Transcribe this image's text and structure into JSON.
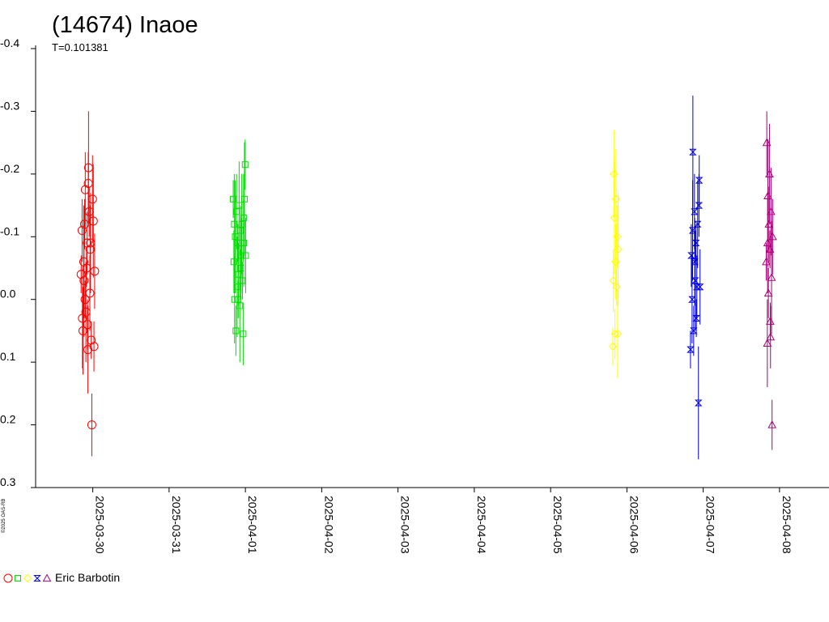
{
  "chart_data": {
    "type": "scatter",
    "title": "(14674) Inaoe",
    "subtitle": "T=0.101381",
    "xlabel": "",
    "ylabel": "",
    "x_axis": {
      "type": "date",
      "ticks": [
        "2025-03-30",
        "2025-03-31",
        "2025-04-01",
        "2025-04-02",
        "2025-04-03",
        "2025-04-04",
        "2025-04-05",
        "2025-04-06",
        "2025-04-07",
        "2025-04-08"
      ],
      "range": [
        "2025-03-29T05:00:00",
        "2025-04-08T12:00:00"
      ]
    },
    "y_axis": {
      "inverted": true,
      "range": [
        -0.4,
        0.3
      ],
      "ticks": [
        -0.4,
        -0.3,
        -0.2,
        -0.1,
        0.0,
        0.1,
        0.2,
        0.3
      ],
      "tick_labels": [
        "-0.4",
        "-0.3",
        "-0.2",
        "-0.1",
        "0.0",
        "0.1",
        "0.2",
        "0.3"
      ]
    },
    "grid": false,
    "legend": {
      "placement": "bottom-left",
      "observer": "Eric Barbotin"
    },
    "watermark": "©2025 OAS-RB",
    "series": [
      {
        "marker": "circle",
        "color": "#ff0000",
        "points": [
          {
            "x": "2025-03-29T20:20",
            "y": -0.04
          },
          {
            "x": "2025-03-29T20:38",
            "y": -0.11
          },
          {
            "x": "2025-03-29T20:55",
            "y": 0.05
          },
          {
            "x": "2025-03-29T21:10",
            "y": -0.06
          },
          {
            "x": "2025-03-29T21:25",
            "y": -0.12
          },
          {
            "x": "2025-03-29T21:38",
            "y": -0.175
          },
          {
            "x": "2025-03-29T21:50",
            "y": 0.02
          },
          {
            "x": "2025-03-29T22:02",
            "y": -0.05
          },
          {
            "x": "2025-03-29T22:15",
            "y": -0.09
          },
          {
            "x": "2025-03-29T22:28",
            "y": 0.08
          },
          {
            "x": "2025-03-29T22:40",
            "y": -0.21
          },
          {
            "x": "2025-03-29T22:52",
            "y": -0.14
          },
          {
            "x": "2025-03-29T23:05",
            "y": -0.01
          },
          {
            "x": "2025-03-29T23:18",
            "y": -0.09
          },
          {
            "x": "2025-03-29T23:30",
            "y": 0.065
          },
          {
            "x": "2025-03-29T23:42",
            "y": 0.2
          },
          {
            "x": "2025-03-29T23:55",
            "y": -0.16
          },
          {
            "x": "2025-03-30T00:10",
            "y": -0.125
          },
          {
            "x": "2025-03-30T00:22",
            "y": 0.075
          },
          {
            "x": "2025-03-30T00:35",
            "y": -0.045
          },
          {
            "x": "2025-03-29T20:45",
            "y": 0.03
          },
          {
            "x": "2025-03-29T21:35",
            "y": 0.0
          },
          {
            "x": "2025-03-29T22:35",
            "y": -0.185
          },
          {
            "x": "2025-03-29T23:10",
            "y": -0.08
          },
          {
            "x": "2025-03-29T21:15",
            "y": -0.03
          },
          {
            "x": "2025-03-29T22:20",
            "y": 0.04
          }
        ]
      },
      {
        "marker": "square",
        "color": "#00dd00",
        "points": [
          {
            "x": "2025-03-31T20:10",
            "y": -0.16
          },
          {
            "x": "2025-03-31T20:22",
            "y": -0.06
          },
          {
            "x": "2025-03-31T20:35",
            "y": 0.0
          },
          {
            "x": "2025-03-31T20:48",
            "y": -0.1
          },
          {
            "x": "2025-03-31T21:00",
            "y": 0.05
          },
          {
            "x": "2025-03-31T21:12",
            "y": -0.14
          },
          {
            "x": "2025-03-31T21:25",
            "y": -0.02
          },
          {
            "x": "2025-03-31T21:38",
            "y": -0.09
          },
          {
            "x": "2025-03-31T21:50",
            "y": -0.04
          },
          {
            "x": "2025-03-31T22:02",
            "y": -0.15
          },
          {
            "x": "2025-03-31T22:15",
            "y": 0.01
          },
          {
            "x": "2025-03-31T22:28",
            "y": -0.11
          },
          {
            "x": "2025-03-31T22:40",
            "y": -0.07
          },
          {
            "x": "2025-03-31T22:52",
            "y": -0.12
          },
          {
            "x": "2025-03-31T23:05",
            "y": -0.03
          },
          {
            "x": "2025-03-31T23:18",
            "y": 0.055
          },
          {
            "x": "2025-03-31T23:30",
            "y": -0.09
          },
          {
            "x": "2025-03-31T23:42",
            "y": -0.16
          },
          {
            "x": "2025-03-31T23:55",
            "y": -0.215
          },
          {
            "x": "2025-04-01T00:05",
            "y": -0.07
          },
          {
            "x": "2025-03-31T20:30",
            "y": -0.12
          },
          {
            "x": "2025-03-31T21:45",
            "y": 0.0
          },
          {
            "x": "2025-03-31T22:35",
            "y": -0.05
          },
          {
            "x": "2025-03-31T23:25",
            "y": -0.13
          }
        ]
      },
      {
        "marker": "diamond",
        "color": "#ffff00",
        "points": [
          {
            "x": "2025-04-05T19:35",
            "y": 0.075
          },
          {
            "x": "2025-04-05T19:45",
            "y": -0.03
          },
          {
            "x": "2025-04-05T19:55",
            "y": -0.2
          },
          {
            "x": "2025-04-05T20:05",
            "y": -0.13
          },
          {
            "x": "2025-04-05T20:15",
            "y": 0.055
          },
          {
            "x": "2025-04-05T20:25",
            "y": -0.06
          },
          {
            "x": "2025-04-05T20:35",
            "y": -0.16
          },
          {
            "x": "2025-04-05T20:45",
            "y": -0.02
          },
          {
            "x": "2025-04-05T20:55",
            "y": -0.1
          },
          {
            "x": "2025-04-05T21:05",
            "y": 0.055
          },
          {
            "x": "2025-04-05T21:15",
            "y": -0.08
          }
        ]
      },
      {
        "marker": "hourglass",
        "color": "#0000dd",
        "points": [
          {
            "x": "2025-04-06T20:00",
            "y": 0.08
          },
          {
            "x": "2025-04-06T20:15",
            "y": -0.07
          },
          {
            "x": "2025-04-06T20:30",
            "y": 0.0
          },
          {
            "x": "2025-04-06T20:45",
            "y": -0.235
          },
          {
            "x": "2025-04-06T21:00",
            "y": 0.05
          },
          {
            "x": "2025-04-06T21:15",
            "y": -0.14
          },
          {
            "x": "2025-04-06T21:30",
            "y": -0.03
          },
          {
            "x": "2025-04-06T21:45",
            "y": -0.09
          },
          {
            "x": "2025-04-06T22:00",
            "y": -0.02
          },
          {
            "x": "2025-04-06T22:15",
            "y": -0.12
          },
          {
            "x": "2025-04-06T22:30",
            "y": 0.165
          },
          {
            "x": "2025-04-06T22:45",
            "y": -0.19
          },
          {
            "x": "2025-04-06T23:00",
            "y": -0.02
          },
          {
            "x": "2025-04-06T20:40",
            "y": -0.11
          },
          {
            "x": "2025-04-06T21:50",
            "y": 0.03
          },
          {
            "x": "2025-04-06T22:40",
            "y": -0.15
          },
          {
            "x": "2025-04-06T21:20",
            "y": -0.06
          }
        ]
      },
      {
        "marker": "triangle",
        "color": "#aa0077",
        "points": [
          {
            "x": "2025-04-07T19:50",
            "y": -0.06
          },
          {
            "x": "2025-04-07T20:00",
            "y": -0.25
          },
          {
            "x": "2025-04-07T20:10",
            "y": 0.07
          },
          {
            "x": "2025-04-07T20:20",
            "y": -0.165
          },
          {
            "x": "2025-04-07T20:30",
            "y": -0.01
          },
          {
            "x": "2025-04-07T20:40",
            "y": -0.12
          },
          {
            "x": "2025-04-07T20:50",
            "y": -0.2
          },
          {
            "x": "2025-04-07T21:00",
            "y": -0.08
          },
          {
            "x": "2025-04-07T21:10",
            "y": 0.06
          },
          {
            "x": "2025-04-07T21:20",
            "y": -0.14
          },
          {
            "x": "2025-04-07T21:30",
            "y": -0.035
          },
          {
            "x": "2025-04-07T21:40",
            "y": 0.2
          },
          {
            "x": "2025-04-07T21:50",
            "y": -0.1
          },
          {
            "x": "2025-04-07T20:15",
            "y": -0.09
          },
          {
            "x": "2025-04-07T21:05",
            "y": 0.035
          }
        ]
      }
    ]
  }
}
